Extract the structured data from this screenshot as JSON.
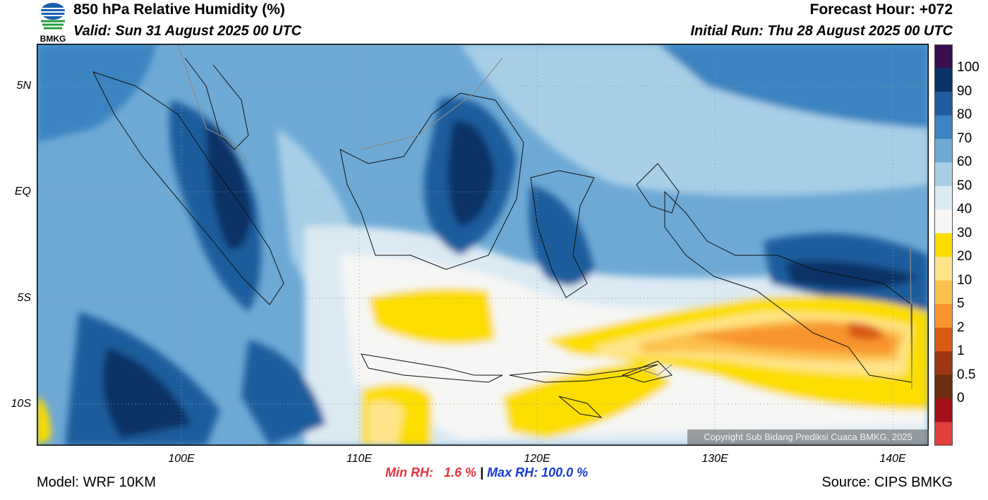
{
  "header": {
    "title": "850 hPa Relative Humidity (%)",
    "valid": "Valid: Sun 31 August 2025 00 UTC",
    "forecast_hour": "Forecast Hour: +072",
    "initial_run": "Initial Run: Thu 28 August 2025 00 UTC",
    "logo_text": "BMKG"
  },
  "axes": {
    "y_labels": [
      "5N",
      "EQ",
      "5S",
      "10S"
    ],
    "x_labels": [
      "100E",
      "110E",
      "120E",
      "130E",
      "140E"
    ]
  },
  "colorbar": {
    "labels": [
      "100",
      "90",
      "80",
      "70",
      "60",
      "50",
      "40",
      "30",
      "20",
      "10",
      "5",
      "2",
      "1",
      "0.5",
      "0"
    ],
    "colors": [
      "#3b0f4f",
      "#0b3266",
      "#1f5d9e",
      "#3a84c1",
      "#6ea9d5",
      "#a8cfe6",
      "#dbeaf3",
      "#f6f6f4",
      "#fbdd00",
      "#ffe58a",
      "#fdc24e",
      "#f8952d",
      "#d85a13",
      "#9c3812",
      "#6b2c10",
      "#a3101a",
      "#e3403c"
    ]
  },
  "stats": {
    "min_label": "Min RH:   1.6 %",
    "separator": " | ",
    "max_label": "Max RH: 100.0 %",
    "min_color": "#e8343c",
    "max_color": "#1a3bd6"
  },
  "footer": {
    "model": "Model: WRF 10KM",
    "source": "Source: CIPS BMKG",
    "copyright": "Copyright Sub Bidang Prediksi Cuaca BMKG, 2025"
  }
}
